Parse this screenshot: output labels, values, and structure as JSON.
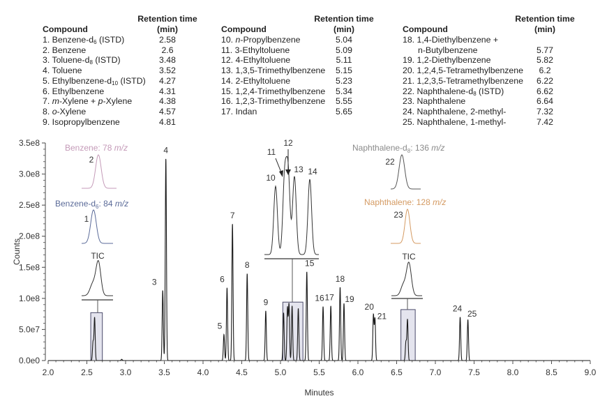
{
  "table": {
    "header_rt_line1": "Retention time",
    "header_rt_line2": "(min)",
    "header_compound": "Compound",
    "groups": [
      [
        {
          "name": [
            {
              "t": "1. Benzene-d"
            },
            {
              "t": "6",
              "sub": true
            },
            {
              "t": " (ISTD)"
            }
          ],
          "rt": "2.58"
        },
        {
          "name": [
            {
              "t": "2. Benzene"
            }
          ],
          "rt": "2.6"
        },
        {
          "name": [
            {
              "t": "3. Toluene-d"
            },
            {
              "t": "8",
              "sub": true
            },
            {
              "t": " (ISTD)"
            }
          ],
          "rt": "3.48"
        },
        {
          "name": [
            {
              "t": "4. Toluene"
            }
          ],
          "rt": "3.52"
        },
        {
          "name": [
            {
              "t": "5. Ethylbenzene-d"
            },
            {
              "t": "10",
              "sub": true
            },
            {
              "t": " (ISTD)"
            }
          ],
          "rt": "4.27"
        },
        {
          "name": [
            {
              "t": "6. Ethylbenzene"
            }
          ],
          "rt": "4.31"
        },
        {
          "name": [
            {
              "t": "7. "
            },
            {
              "t": "m",
              "i": true
            },
            {
              "t": "-Xylene + "
            },
            {
              "t": "p",
              "i": true
            },
            {
              "t": "-Xylene"
            }
          ],
          "rt": "4.38"
        },
        {
          "name": [
            {
              "t": "8. "
            },
            {
              "t": "o",
              "i": true
            },
            {
              "t": "-Xylene"
            }
          ],
          "rt": "4.57"
        },
        {
          "name": [
            {
              "t": "9. Isopropylbenzene"
            }
          ],
          "rt": "4.81"
        }
      ],
      [
        {
          "name": [
            {
              "t": "10. "
            },
            {
              "t": "n",
              "i": true
            },
            {
              "t": "-Propylbenzene"
            }
          ],
          "rt": "5.04"
        },
        {
          "name": [
            {
              "t": "11. 3-Ethyltoluene"
            }
          ],
          "rt": "5.09"
        },
        {
          "name": [
            {
              "t": "12. 4-Ethyltoluene"
            }
          ],
          "rt": "5.11"
        },
        {
          "name": [
            {
              "t": "13. 1,3,5-Trimethylbenzene"
            }
          ],
          "rt": "5.15"
        },
        {
          "name": [
            {
              "t": "14. 2-Ethyltoluene"
            }
          ],
          "rt": "5.23"
        },
        {
          "name": [
            {
              "t": "15. 1,2,4-Trimethylbenzene"
            }
          ],
          "rt": "5.34"
        },
        {
          "name": [
            {
              "t": "16. 1,2,3-Trimethylbenzene"
            }
          ],
          "rt": "5.55"
        },
        {
          "name": [
            {
              "t": "17. Indan"
            }
          ],
          "rt": "5.65"
        }
      ],
      [
        {
          "name": [
            {
              "t": "18. 1,4-Diethylbenzene +"
            }
          ],
          "name2": [
            {
              "t": "n-Butylbenzene"
            }
          ],
          "rt": "5.77"
        },
        {
          "name": [
            {
              "t": "19. 1,2-Diethylbenzene"
            }
          ],
          "rt": "5.82"
        },
        {
          "name": [
            {
              "t": "20. 1,2,4,5-Tetramethylbenzene"
            }
          ],
          "rt": "6.2"
        },
        {
          "name": [
            {
              "t": "21. 1,2,3,5-Tetramethylbenzene"
            }
          ],
          "rt": "6.22"
        },
        {
          "name": [
            {
              "t": "22. Naphthalene-d"
            },
            {
              "t": "8",
              "sub": true
            },
            {
              "t": " (ISTD)"
            }
          ],
          "rt": "6.62"
        },
        {
          "name": [
            {
              "t": "23. Naphthalene"
            }
          ],
          "rt": "6.64"
        },
        {
          "name": [
            {
              "t": "24. Naphthalene, 2-methyl-"
            }
          ],
          "rt": "7.32"
        },
        {
          "name": [
            {
              "t": "25. Naphthalene, 1-methyl-"
            }
          ],
          "rt": "7.42"
        }
      ]
    ]
  },
  "chart_data": {
    "type": "line",
    "xlabel": "Minutes",
    "ylabel": "Counts",
    "xlim": [
      2.0,
      9.0
    ],
    "ylim": [
      0,
      350000000.0
    ],
    "xticks": [
      "2.0",
      "2.5",
      "3.0",
      "3.5",
      "4.0",
      "4.5",
      "5.0",
      "5.5",
      "6.0",
      "6.5",
      "7.0",
      "7.5",
      "8.0",
      "8.5",
      "9.0"
    ],
    "yticks": [
      "0.0e0",
      "5.0e7",
      "1.0e8",
      "1.5e8",
      "2.0e8",
      "2.5e8",
      "3.0e8",
      "3.5e8"
    ],
    "grid": false,
    "line_color": "#1a1a1a",
    "peaks": [
      {
        "label": "1",
        "rt": 2.58,
        "height": 30000000.0,
        "show_label": false
      },
      {
        "label": "2",
        "rt": 2.6,
        "height": 69000000.0,
        "show_label": false
      },
      {
        "label": "",
        "rt": 2.95,
        "height": 2000000.0,
        "show_label": false
      },
      {
        "label": "3",
        "rt": 3.48,
        "height": 113000000.0,
        "show_label": true
      },
      {
        "label": "4",
        "rt": 3.52,
        "height": 325000000.0,
        "show_label": true
      },
      {
        "label": "5",
        "rt": 4.27,
        "height": 42000000.0,
        "show_label": true
      },
      {
        "label": "6",
        "rt": 4.31,
        "height": 117000000.0,
        "show_label": true
      },
      {
        "label": "7",
        "rt": 4.38,
        "height": 220000000.0,
        "show_label": true
      },
      {
        "label": "8",
        "rt": 4.57,
        "height": 140000000.0,
        "show_label": true
      },
      {
        "label": "9",
        "rt": 4.81,
        "height": 80000000.0,
        "show_label": true
      },
      {
        "label": "10",
        "rt": 5.04,
        "height": 77000000.0,
        "show_label": false
      },
      {
        "label": "11",
        "rt": 5.09,
        "height": 84000000.0,
        "show_label": false
      },
      {
        "label": "12",
        "rt": 5.11,
        "height": 90000000.0,
        "show_label": false
      },
      {
        "label": "13",
        "rt": 5.15,
        "height": 88000000.0,
        "show_label": false
      },
      {
        "label": "14",
        "rt": 5.23,
        "height": 84000000.0,
        "show_label": false
      },
      {
        "label": "15",
        "rt": 5.34,
        "height": 143000000.0,
        "show_label": true
      },
      {
        "label": "16",
        "rt": 5.55,
        "height": 87000000.0,
        "show_label": true
      },
      {
        "label": "17",
        "rt": 5.65,
        "height": 88000000.0,
        "show_label": true
      },
      {
        "label": "18",
        "rt": 5.77,
        "height": 118000000.0,
        "show_label": true
      },
      {
        "label": "19",
        "rt": 5.82,
        "height": 92000000.0,
        "show_label": true
      },
      {
        "label": "20",
        "rt": 6.2,
        "height": 73000000.0,
        "show_label": true
      },
      {
        "label": "21",
        "rt": 6.22,
        "height": 67000000.0,
        "show_label": true
      },
      {
        "label": "22",
        "rt": 6.62,
        "height": 30000000.0,
        "show_label": false
      },
      {
        "label": "23",
        "rt": 6.64,
        "height": 66000000.0,
        "show_label": false
      },
      {
        "label": "24",
        "rt": 7.32,
        "height": 70000000.0,
        "show_label": true
      },
      {
        "label": "25",
        "rt": 7.42,
        "height": 66000000.0,
        "show_label": true
      }
    ],
    "highlight_fill": "#e4e4ee",
    "highlight_stroke": "#4a4a6a",
    "insets": {
      "benzene_ion": {
        "title": "Benzene: ",
        "mz": "78",
        "unit": "m/z",
        "peak": "2",
        "color": "#c49ab8"
      },
      "benzene_d6_ion": {
        "title": "Benzene-d",
        "sub": "6",
        "title_post": ": ",
        "mz": "84",
        "unit": "m/z",
        "peak": "1",
        "color": "#5a6a98"
      },
      "benzene_tic": {
        "title": "TIC"
      },
      "middle_zoom": {
        "peaks": [
          "10",
          "11",
          "12",
          "13",
          "14"
        ]
      },
      "naph_d8_ion": {
        "title": "Naphthalene-d",
        "sub": "8",
        "title_post": ": ",
        "mz": "136",
        "unit": "m/z",
        "peak": "22",
        "color": "#8a8a8a"
      },
      "naph_ion": {
        "title": "Naphthalene: ",
        "mz": "128",
        "unit": "m/z",
        "peak": "23",
        "color": "#d49a62"
      },
      "naph_tic": {
        "title": "TIC"
      }
    }
  }
}
